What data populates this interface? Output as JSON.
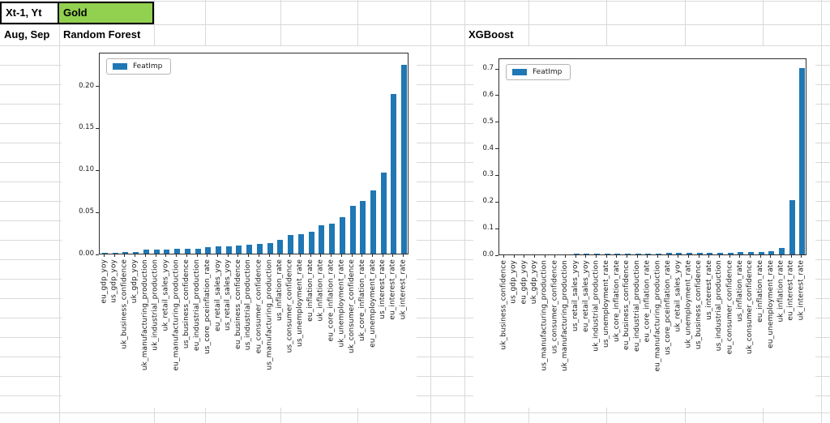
{
  "sheet": {
    "row1": {
      "input_label": "Xt-1, Yt",
      "target_value": "Gold"
    },
    "row2": {
      "period_label": "Aug, Sep",
      "model_left": "Random Forest",
      "model_right": "XGBoost"
    },
    "target_fill_color": "#92d050"
  },
  "chart_data": [
    {
      "type": "bar",
      "title": "Random Forest",
      "legend_label": "FeatImp",
      "legend_position": "upper left",
      "bar_color": "#1f77b4",
      "grid": false,
      "ylim": [
        0,
        0.24
      ],
      "yticks": [
        "0.00",
        "0.05",
        "0.10",
        "0.15",
        "0.20"
      ],
      "xlabel": "",
      "ylabel": "",
      "categories": [
        "eu_gdp_yoy",
        "us_gdp_yoy",
        "uk_business_confidence",
        "uk_gdp_yoy",
        "uk_manufacturing_production",
        "uk_industrial_production",
        "uk_retail_sales_yoy",
        "eu_manufacturing_production",
        "us_business_confidence",
        "eu_industrial_production",
        "us_core_pceinflation_rate",
        "eu_retail_sales_yoy",
        "us_retail_sales_yoy",
        "eu_business_confidence",
        "us_industrial_production",
        "eu_consumer_confidence",
        "us_manufacturing_production",
        "us_inflation_rate",
        "us_consumer_confidence",
        "us_unemployment_rate",
        "eu_inflation_rate",
        "uk_inflation_rate",
        "eu_core_inflation_rate",
        "uk_unemployment_rate",
        "uk_consumer_confidence",
        "uk_core_inflation_rate",
        "eu_unemployment_rate",
        "us_interest_rate",
        "eu_interest_rate",
        "uk_interest_rate"
      ],
      "values": [
        0.0005,
        0.001,
        0.002,
        0.002,
        0.005,
        0.005,
        0.005,
        0.006,
        0.006,
        0.006,
        0.008,
        0.009,
        0.009,
        0.01,
        0.011,
        0.012,
        0.013,
        0.016,
        0.022,
        0.023,
        0.026,
        0.034,
        0.036,
        0.043,
        0.057,
        0.063,
        0.075,
        0.096,
        0.19,
        0.225
      ]
    },
    {
      "type": "bar",
      "title": "XGBoost",
      "legend_label": "FeatImp",
      "legend_position": "upper left",
      "bar_color": "#1f77b4",
      "grid": false,
      "ylim": [
        0,
        0.74
      ],
      "yticks": [
        "0.0",
        "0.1",
        "0.2",
        "0.3",
        "0.4",
        "0.5",
        "0.6",
        "0.7"
      ],
      "xlabel": "",
      "ylabel": "",
      "categories": [
        "uk_business_confidence",
        "us_gdp_yoy",
        "eu_gdp_yoy",
        "uk_gdp_yoy",
        "us_manufacturing_production",
        "us_consumer_confidence",
        "uk_manufacturing_production",
        "us_retail_sales_yoy",
        "eu_retail_sales_yoy",
        "uk_industrial_production",
        "us_unemployment_rate",
        "uk_core_inflation_rate",
        "eu_business_confidence",
        "eu_industrial_production",
        "eu_core_inflation_rate",
        "eu_manufacturing_production",
        "us_core_pceinflation_rate",
        "uk_retail_sales_yoy",
        "uk_unemployment_rate",
        "us_business_confidence",
        "us_interest_rate",
        "us_industrial_production",
        "eu_consumer_confidence",
        "us_inflation_rate",
        "uk_consumer_confidence",
        "eu_inflation_rate",
        "eu_unemployment_rate",
        "uk_inflation_rate",
        "eu_interest_rate",
        "uk_interest_rate"
      ],
      "values": [
        0.0,
        0.0005,
        0.0005,
        0.001,
        0.001,
        0.001,
        0.001,
        0.002,
        0.002,
        0.002,
        0.002,
        0.003,
        0.003,
        0.003,
        0.004,
        0.004,
        0.005,
        0.005,
        0.005,
        0.005,
        0.006,
        0.006,
        0.007,
        0.008,
        0.008,
        0.01,
        0.012,
        0.025,
        0.205,
        0.7
      ]
    }
  ]
}
